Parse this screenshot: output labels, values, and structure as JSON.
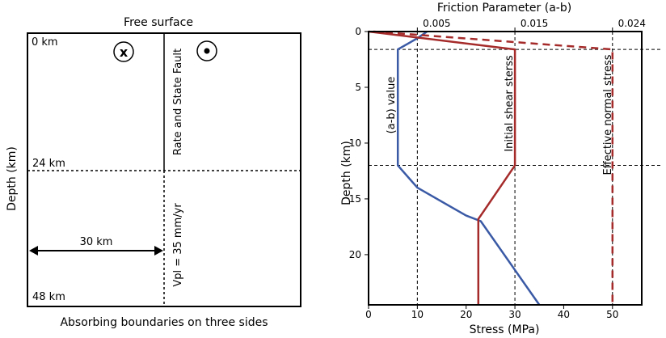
{
  "left_panel": {
    "top_label": "Free surface",
    "bottom_label": "Absorbing boundaries on three sides",
    "y_axis_label": "Depth (km)",
    "depth_0": "0 km",
    "depth_24": "24 km",
    "depth_48": "48 km",
    "width_label": "30 km",
    "fault_label": "Rate and State Fault",
    "vpl_label": "Vpl = 35 mm/yr",
    "into_page_symbol": "x"
  },
  "chart_data": {
    "type": "line",
    "top_axis_title": "Friction Parameter (a-b)",
    "xlabel": "Stress (MPa)",
    "ylabel": "Depth (km)",
    "xlim": [
      0,
      56
    ],
    "ylim": [
      24.5,
      0
    ],
    "x_ticks": [
      0,
      10,
      20,
      30,
      40,
      50
    ],
    "y_ticks": [
      0,
      5,
      10,
      15,
      20
    ],
    "top_ticks": [
      "0.005",
      "0.015",
      "0.024"
    ],
    "top_tick_positions": [
      10,
      30,
      50
    ],
    "reference_lines": {
      "vertical": [
        10,
        30,
        50
      ],
      "horizontal": [
        1.6,
        12
      ]
    },
    "series": [
      {
        "name": "(a-b) value",
        "color": "#3b5aa6",
        "dash": "solid",
        "points": [
          [
            12,
            0
          ],
          [
            10,
            0.6
          ],
          [
            6,
            1.6
          ],
          [
            6,
            12
          ],
          [
            10,
            14
          ],
          [
            20,
            16.5
          ],
          [
            23,
            17
          ],
          [
            35,
            24.5
          ]
        ]
      },
      {
        "name": "Initial shear sterss",
        "color": "#a52a2a",
        "dash": "solid",
        "points": [
          [
            0,
            0
          ],
          [
            30,
            1.6
          ],
          [
            30,
            12
          ],
          [
            23,
            16.5
          ],
          [
            22.5,
            16.8
          ],
          [
            22.5,
            24.5
          ]
        ]
      },
      {
        "name": "Effective normal stress",
        "color": "#a52a2a",
        "dash": "dashed",
        "points": [
          [
            1,
            0
          ],
          [
            50,
            1.6
          ],
          [
            50,
            24.5
          ]
        ]
      }
    ]
  }
}
